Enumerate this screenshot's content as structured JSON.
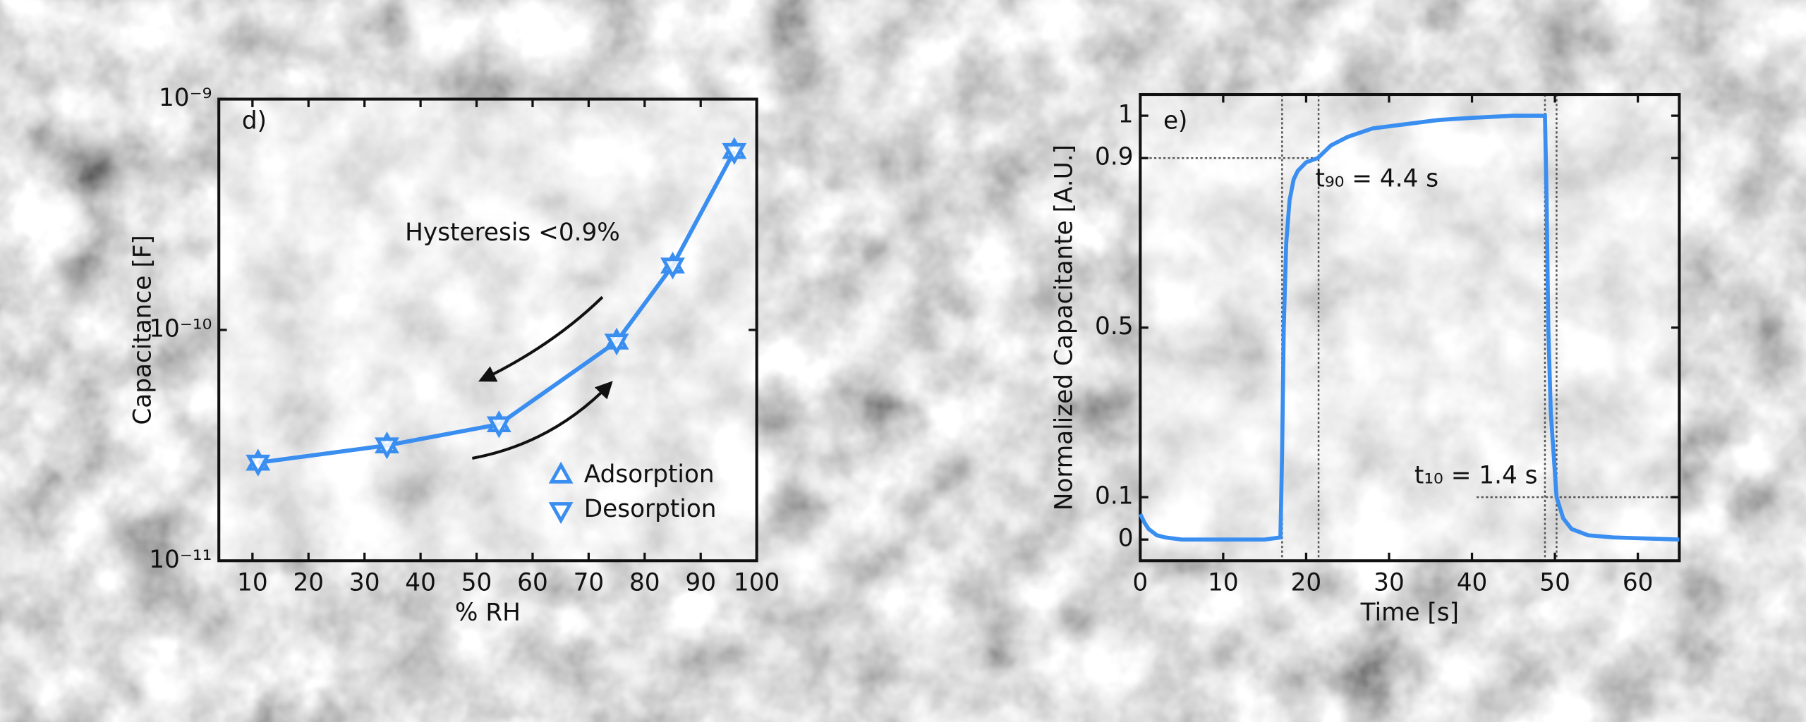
{
  "chart_data": [
    {
      "type": "line",
      "label": "d)",
      "annotation": "Hysteresis <0.9%",
      "xlabel": "% RH",
      "ylabel": "Capacitance [F]",
      "x": [
        11,
        34,
        54,
        75,
        85,
        96
      ],
      "series": [
        {
          "name": "Adsorption",
          "color": "#3a8ef0",
          "marker": "triangle-up",
          "values": [
            2.66e-11,
            3.16e-11,
            3.9e-11,
            8.9e-11,
            1.9e-10,
            5.96e-10
          ]
        },
        {
          "name": "Desorption",
          "color": "#3a8ef0",
          "marker": "triangle-down",
          "values": [
            2.66e-11,
            3.16e-11,
            3.9e-11,
            8.9e-11,
            1.9e-10,
            5.96e-10
          ]
        }
      ],
      "xlim": [
        4,
        100
      ],
      "xticks": [
        10,
        20,
        30,
        40,
        50,
        60,
        70,
        80,
        90,
        100
      ],
      "ylim": [
        1e-11,
        1e-09
      ],
      "yscale": "log",
      "yticks": [
        {
          "value": 1e-11,
          "label": "10⁻¹¹"
        },
        {
          "value": 1e-10,
          "label": "10⁻¹⁰"
        },
        {
          "value": 1e-09,
          "label": "10⁻⁹"
        }
      ],
      "legend": "lower right"
    },
    {
      "type": "line",
      "label": "e)",
      "xlabel": "Time [s]",
      "ylabel": "Normalized Capacitante [A.U.]",
      "x": [
        0,
        0.5,
        1,
        2,
        3,
        5,
        10,
        15,
        16.9,
        17.1,
        17.3,
        17.6,
        18,
        18.5,
        19,
        20,
        21.4,
        23,
        25,
        28,
        32,
        36,
        40,
        45,
        48.8,
        49.0,
        49.2,
        49.5,
        50.2,
        51,
        52,
        54,
        57,
        65
      ],
      "series": [
        {
          "name": "Normalized capacitance",
          "color": "#3a8ef0",
          "values": [
            0.06,
            0.04,
            0.025,
            0.01,
            0.005,
            0,
            0,
            0,
            0.005,
            0.2,
            0.5,
            0.7,
            0.8,
            0.85,
            0.87,
            0.89,
            0.9,
            0.93,
            0.95,
            0.97,
            0.98,
            0.99,
            0.995,
            1,
            1,
            0.8,
            0.5,
            0.3,
            0.1,
            0.05,
            0.025,
            0.01,
            0.005,
            0
          ]
        }
      ],
      "xlim": [
        0,
        65
      ],
      "xticks": [
        0,
        10,
        20,
        30,
        40,
        50,
        60
      ],
      "ylim": [
        -0.05,
        1.05
      ],
      "yticks": [
        0,
        0.1,
        0.5,
        0.9,
        1
      ],
      "vlines": [
        17.1,
        21.5,
        48.8,
        50.2
      ],
      "hlines": [
        0.9,
        0.1
      ],
      "annotations": [
        "t₉₀ = 4.4 s",
        "t₁₀ = 1.4 s"
      ]
    }
  ]
}
